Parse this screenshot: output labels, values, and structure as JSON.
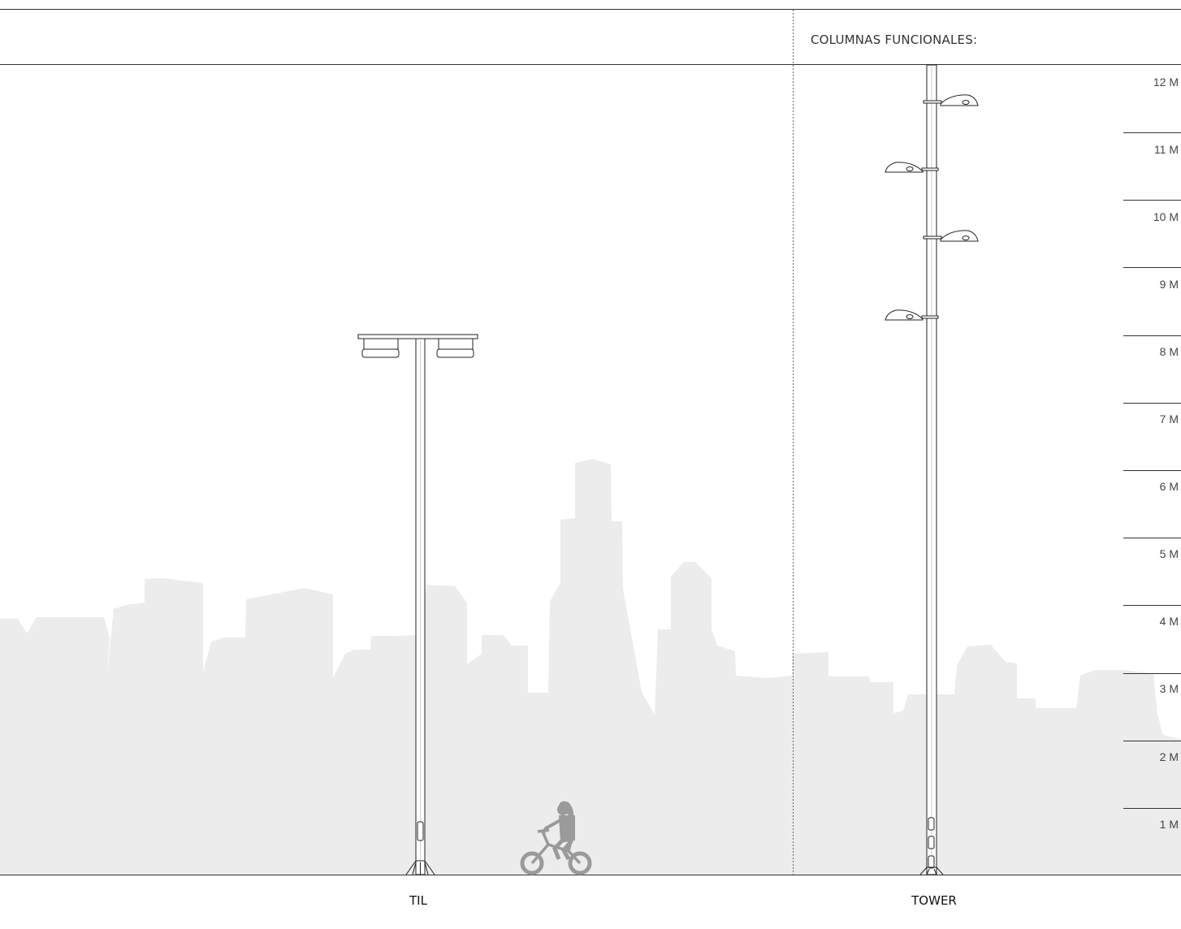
{
  "section_title": "COLUMNAS FUNCIONALES:",
  "columns": [
    {
      "name": "TIL"
    },
    {
      "name": "TOWER"
    }
  ],
  "height_scale": {
    "unit": "M",
    "labels": [
      "12 M",
      "11 M",
      "10 M",
      "9 M",
      "8 M",
      "7 M",
      "6 M",
      "5 M",
      "4 M",
      "3 M",
      "2 M",
      "1 M"
    ]
  },
  "colors": {
    "skyline": "#ececec",
    "line": "#222222",
    "cyclist": "#9a9a9a"
  },
  "icons": [
    "city-skyline-silhouette",
    "cyclist-child-icon",
    "streetlight-til-icon",
    "streetlight-tower-icon"
  ]
}
